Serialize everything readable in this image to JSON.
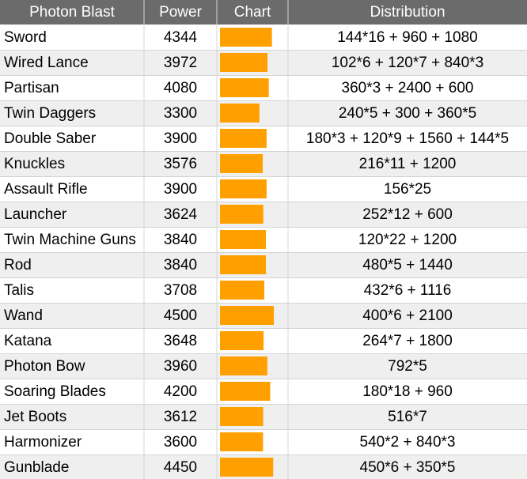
{
  "table": {
    "header": [
      "Photon Blast",
      "Power",
      "Chart",
      "Distribution"
    ],
    "rows": [
      [
        "Sword",
        4344,
        "144*16 + 960 + 1080"
      ],
      [
        "Wired Lance",
        3972,
        "102*6 + 120*7 + 840*3"
      ],
      [
        "Partisan",
        4080,
        "360*3 + 2400 + 600"
      ],
      [
        "Twin Daggers",
        3300,
        "240*5 + 300 + 360*5"
      ],
      [
        "Double Saber",
        3900,
        "180*3 + 120*9 + 1560 + 144*5"
      ],
      [
        "Knuckles",
        3576,
        "216*11 + 1200"
      ],
      [
        "Assault Rifle",
        3900,
        "156*25"
      ],
      [
        "Launcher",
        3624,
        "252*12 + 600"
      ],
      [
        "Twin Machine Guns",
        3840,
        "120*22 + 1200"
      ],
      [
        "Rod",
        3840,
        "480*5 + 1440"
      ],
      [
        "Talis",
        3708,
        "432*6 + 1116"
      ],
      [
        "Wand",
        4500,
        "400*6 + 2100"
      ],
      [
        "Katana",
        3648,
        "264*7 + 1800"
      ],
      [
        "Photon Bow",
        3960,
        "792*5"
      ],
      [
        "Soaring Blades",
        4200,
        "180*18 + 960"
      ],
      [
        "Jet Boots",
        3612,
        "516*7"
      ],
      [
        "Harmonizer",
        3600,
        "540*2 + 840*3"
      ],
      [
        "Gunblade",
        4450,
        "450*6 + 350*5"
      ]
    ]
  }
}
